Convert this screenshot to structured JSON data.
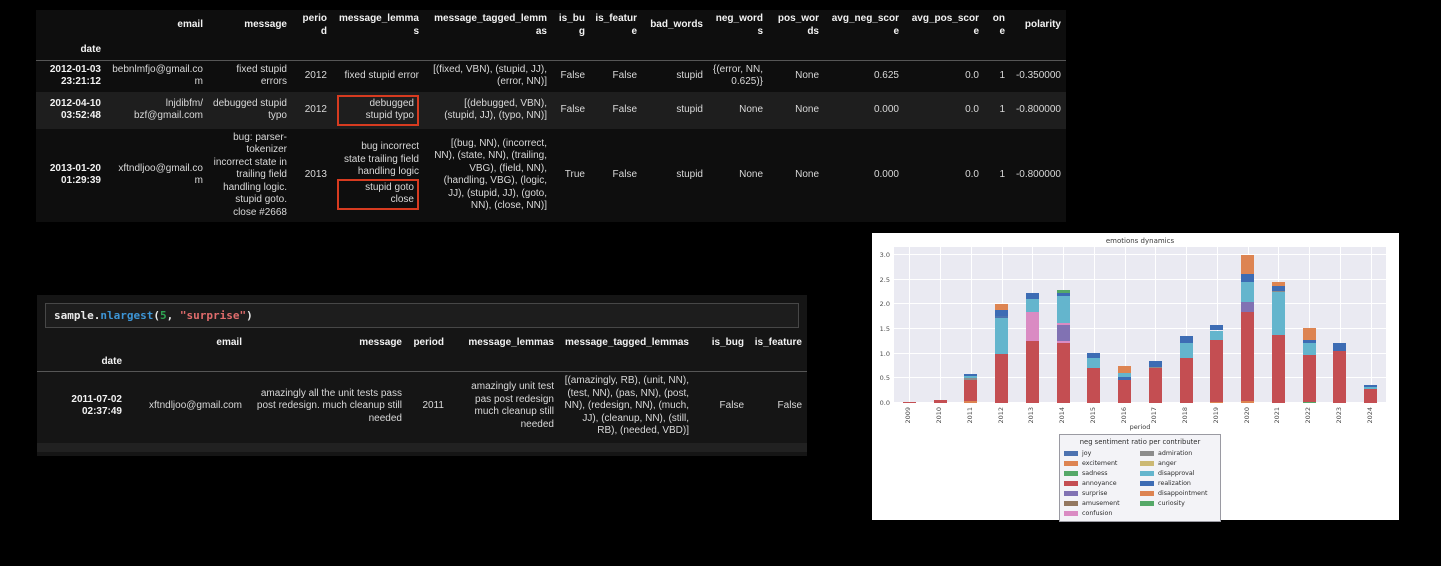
{
  "top_table": {
    "index_name": "date",
    "columns": [
      "email",
      "message",
      "period",
      "message_lemmas",
      "message_tagged_lemmas",
      "is_bug",
      "is_feature",
      "bad_words",
      "neg_words",
      "pos_words",
      "avg_neg_score",
      "avg_pos_score",
      "one",
      "polarity"
    ],
    "annotation_color": "#d73b20",
    "rows": [
      {
        "date": "2012-01-03 23:21:12",
        "email": "bebnlmfjo@gmail.com",
        "message": "fixed stupid errors",
        "period": "2012",
        "message_lemmas": "fixed stupid error",
        "message_lemmas_boxed": false,
        "message_tagged_lemmas": "[(fixed, VBN), (stupid, JJ), (error, NN)]",
        "is_bug": "False",
        "is_feature": "False",
        "bad_words": "stupid",
        "neg_words": "{(error, NN, 0.625)}",
        "pos_words": "None",
        "avg_neg_score": "0.625",
        "avg_pos_score": "0.0",
        "one": "1",
        "polarity": "-0.350000"
      },
      {
        "date": "2012-04-10 03:52:48",
        "email": "lnjdibfm/ bzf@gmail.com",
        "message": "debugged stupid typo",
        "period": "2012",
        "message_lemmas": "debugged stupid typo",
        "message_lemmas_boxed": true,
        "message_tagged_lemmas": "[(debugged, VBN), (stupid, JJ), (typo, NN)]",
        "is_bug": "False",
        "is_feature": "False",
        "bad_words": "stupid",
        "neg_words": "None",
        "pos_words": "None",
        "avg_neg_score": "0.000",
        "avg_pos_score": "0.0",
        "one": "1",
        "polarity": "-0.800000"
      },
      {
        "date": "2013-01-20 01:29:39",
        "email": "xftndljoo@gmail.com",
        "message": "bug: parser-tokenizer incorrect state in trailing field handling logic. stupid goto. close #2668",
        "period": "2013",
        "message_lemmas": "bug incorrect state trailing field handling logic",
        "message_lemmas_boxed_suffix": "stupid goto close",
        "message_tagged_lemmas": "[(bug, NN), (incorrect, NN), (state, NN), (trailing, VBG), (field, NN), (handling, VBG), (logic, JJ), (stupid, JJ), (goto, NN), (close, NN)]",
        "is_bug": "True",
        "is_feature": "False",
        "bad_words": "stupid",
        "neg_words": "None",
        "pos_words": "None",
        "avg_neg_score": "0.000",
        "avg_pos_score": "0.0",
        "one": "1",
        "polarity": "-0.800000"
      }
    ]
  },
  "code_cell": {
    "tokens": [
      {
        "text": "sample",
        "type": "plain"
      },
      {
        "text": ".",
        "type": "plain"
      },
      {
        "text": "nlargest",
        "type": "method"
      },
      {
        "text": "(",
        "type": "plain"
      },
      {
        "text": "5",
        "type": "number"
      },
      {
        "text": ", ",
        "type": "plain"
      },
      {
        "text": "\"surprise\"",
        "type": "string"
      },
      {
        "text": ")",
        "type": "plain"
      }
    ],
    "token_colors": {
      "plain": "#e8e8e8",
      "method": "#3d95d6",
      "number": "#2fa352",
      "string": "#e06c6c"
    }
  },
  "sample_table": {
    "index_name": "date",
    "columns": [
      "email",
      "message",
      "period",
      "message_lemmas",
      "message_tagged_lemmas",
      "is_bug",
      "is_feature"
    ],
    "rows": [
      {
        "date": "2011-07-02 02:37:49",
        "email": "xftndljoo@gmail.com",
        "message": "amazingly all the unit tests pass post redesign. much cleanup still needed",
        "period": "2011",
        "message_lemmas": "amazingly unit test pas post redesign much cleanup still needed",
        "message_tagged_lemmas": "[(amazingly, RB), (unit, NN), (test, NN), (pas, NN), (post, NN), (redesign, NN), (much, JJ), (cleanup, NN), (still, RB), (needed, VBD)]",
        "is_bug": "False",
        "is_feature": "False"
      }
    ]
  },
  "chart_data": {
    "type": "bar",
    "title": "emotions dynamics",
    "xlabel": "period",
    "ylabel": "",
    "ylim": [
      0.0,
      3.0
    ],
    "yticks": [
      "0.0",
      "0.5",
      "1.0",
      "1.5",
      "2.0",
      "2.5",
      "3.0"
    ],
    "grid": true,
    "legend_position": "below",
    "legend_title": "neg sentiment ratio per contributer",
    "emotions": [
      {
        "name": "joy",
        "color": "#4c72b0"
      },
      {
        "name": "excitement",
        "color": "#dd8452"
      },
      {
        "name": "sadness",
        "color": "#55a868"
      },
      {
        "name": "annoyance",
        "color": "#c44e52"
      },
      {
        "name": "surprise",
        "color": "#8172b3"
      },
      {
        "name": "amusement",
        "color": "#937860"
      },
      {
        "name": "confusion",
        "color": "#da8bc3"
      },
      {
        "name": "admiration",
        "color": "#8c8c8c"
      },
      {
        "name": "anger",
        "color": "#ccb974"
      },
      {
        "name": "disapproval",
        "color": "#64b5cd"
      },
      {
        "name": "realization",
        "color": "#3d6cb4"
      },
      {
        "name": "disappointment",
        "color": "#dd8452"
      },
      {
        "name": "curiosity",
        "color": "#55a868"
      }
    ],
    "categories": [
      "2009",
      "2010",
      "2011",
      "2012",
      "2013",
      "2014",
      "2015",
      "2016",
      "2017",
      "2018",
      "2019",
      "2020",
      "2021",
      "2022",
      "2023",
      "2024"
    ],
    "stacks": [
      [
        [
          "annoyance",
          0.03
        ]
      ],
      [
        [
          "annoyance",
          0.07
        ]
      ],
      [
        [
          "excitement",
          0.04
        ],
        [
          "annoyance",
          0.43
        ],
        [
          "admiration",
          0.03
        ],
        [
          "disapproval",
          0.04
        ],
        [
          "realization",
          0.04
        ]
      ],
      [
        [
          "annoyance",
          1.0
        ],
        [
          "disapproval",
          0.72
        ],
        [
          "joy",
          0.05
        ],
        [
          "realization",
          0.11
        ],
        [
          "disappointment",
          0.13
        ]
      ],
      [
        [
          "annoyance",
          1.25
        ],
        [
          "confusion",
          0.6
        ],
        [
          "disapproval",
          0.25
        ],
        [
          "realization",
          0.13
        ]
      ],
      [
        [
          "annoyance",
          1.22
        ],
        [
          "confusion",
          0.03
        ],
        [
          "surprise",
          0.34
        ],
        [
          "confusion",
          0.03
        ],
        [
          "disapproval",
          0.55
        ],
        [
          "realization",
          0.06
        ],
        [
          "curiosity",
          0.06
        ]
      ],
      [
        [
          "annoyance",
          0.7
        ],
        [
          "disapproval",
          0.21
        ],
        [
          "realization",
          0.1
        ]
      ],
      [
        [
          "annoyance",
          0.46
        ],
        [
          "realization",
          0.06
        ],
        [
          "disapproval",
          0.08
        ],
        [
          "disappointment",
          0.15
        ]
      ],
      [
        [
          "annoyance",
          0.7
        ],
        [
          "admiration",
          0.03
        ],
        [
          "realization",
          0.13
        ]
      ],
      [
        [
          "annoyance",
          0.92
        ],
        [
          "disapproval",
          0.3
        ],
        [
          "realization",
          0.14
        ]
      ],
      [
        [
          "excitement",
          0.03
        ],
        [
          "annoyance",
          1.24
        ],
        [
          "disapproval",
          0.2
        ],
        [
          "realization",
          0.12
        ]
      ],
      [
        [
          "excitement",
          0.04
        ],
        [
          "annoyance",
          1.81
        ],
        [
          "surprise",
          0.2
        ],
        [
          "disapproval",
          0.4
        ],
        [
          "realization",
          0.17
        ],
        [
          "disappointment",
          0.38
        ]
      ],
      [
        [
          "annoyance",
          1.37
        ],
        [
          "disapproval",
          0.88
        ],
        [
          "admiration",
          0.03
        ],
        [
          "realization",
          0.09
        ],
        [
          "disappointment",
          0.08
        ]
      ],
      [
        [
          "sadness",
          0.02
        ],
        [
          "annoyance",
          0.96
        ],
        [
          "disapproval",
          0.24
        ],
        [
          "realization",
          0.06
        ],
        [
          "disappointment",
          0.24
        ]
      ],
      [
        [
          "annoyance",
          1.05
        ],
        [
          "realization",
          0.16
        ]
      ],
      [
        [
          "annoyance",
          0.29
        ],
        [
          "disapproval",
          0.04
        ],
        [
          "realization",
          0.04
        ]
      ]
    ]
  }
}
